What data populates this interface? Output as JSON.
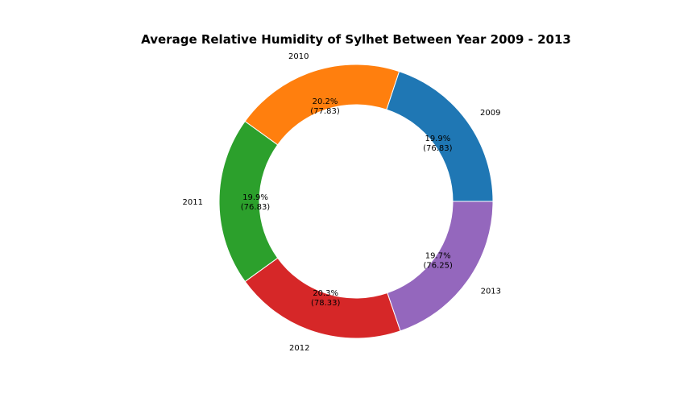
{
  "chart_data": {
    "type": "pie",
    "donut": true,
    "title": "Average Relative Humidity of Sylhet Between Year 2009 - 2013",
    "categories": [
      "2009",
      "2010",
      "2011",
      "2012",
      "2013"
    ],
    "values": [
      76.83,
      77.83,
      76.83,
      78.33,
      76.25
    ],
    "percent_labels": [
      "19.9%",
      "20.2%",
      "19.9%",
      "20.3%",
      "19.7%"
    ],
    "value_labels": [
      "(76.83)",
      "(77.83)",
      "(76.83)",
      "(78.33)",
      "(76.25)"
    ],
    "colors": [
      "#1f77b4",
      "#ff7f0e",
      "#2ca02c",
      "#d62728",
      "#9467bd"
    ],
    "legend": "none"
  }
}
